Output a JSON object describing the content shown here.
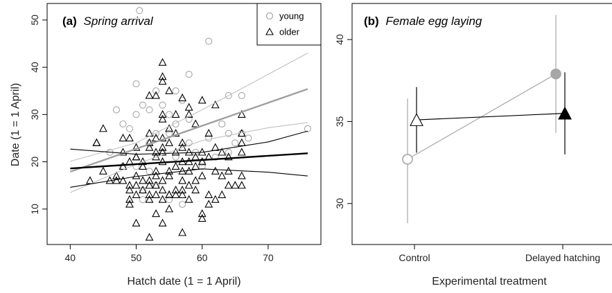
{
  "colors": {
    "young": "#a6a6a6",
    "older": "#000000"
  },
  "chart_data": [
    {
      "type": "scatter",
      "panel_label": "(a)",
      "title": "Spring arrival",
      "xlabel": "Hatch date (1 = 1 April)",
      "ylabel": "Date (1 = 1 April)",
      "xlim": [
        36.5,
        78
      ],
      "ylim": [
        2.5,
        53.5
      ],
      "xticks": [
        40,
        50,
        60,
        70
      ],
      "yticks": [
        10,
        20,
        30,
        40,
        50
      ],
      "legend": {
        "placement": "top-right",
        "entries": [
          "young",
          "older"
        ]
      },
      "series": [
        {
          "name": "young",
          "marker": "circle",
          "points": [
            [
              50.5,
              52
            ],
            [
              61,
              45.5
            ],
            [
              58,
              38.5
            ],
            [
              50,
              36.5
            ],
            [
              53,
              35
            ],
            [
              56,
              35
            ],
            [
              57,
              33
            ],
            [
              48,
              28
            ],
            [
              51,
              32
            ],
            [
              52,
              31
            ],
            [
              47,
              31
            ],
            [
              55,
              30
            ],
            [
              58,
              29
            ],
            [
              64,
              34
            ],
            [
              66,
              34
            ],
            [
              63,
              28
            ],
            [
              61,
              25
            ],
            [
              64,
              26
            ],
            [
              66,
              26
            ],
            [
              65,
              24
            ],
            [
              67,
              25
            ],
            [
              76,
              27
            ],
            [
              60,
              20
            ],
            [
              55,
              26
            ],
            [
              53,
              26
            ],
            [
              52,
              24
            ],
            [
              50,
              30
            ],
            [
              49,
              27
            ],
            [
              48,
              19
            ],
            [
              50,
              19
            ],
            [
              54,
              22
            ],
            [
              56,
              21
            ],
            [
              52,
              18
            ],
            [
              55,
              12
            ],
            [
              51,
              12
            ],
            [
              53,
              15
            ],
            [
              58,
              24
            ],
            [
              59,
              22
            ],
            [
              60,
              19
            ],
            [
              62,
              21
            ],
            [
              64,
              22
            ],
            [
              57,
              11
            ],
            [
              46,
              22
            ],
            [
              51,
              14
            ],
            [
              56,
              28
            ],
            [
              54,
              32
            ]
          ]
        },
        {
          "name": "older",
          "marker": "triangle",
          "points": [
            [
              54,
              41
            ],
            [
              54,
              38
            ],
            [
              54,
              37
            ],
            [
              57,
              33.5
            ],
            [
              58,
              31.5
            ],
            [
              60,
              33
            ],
            [
              53,
              34
            ],
            [
              52,
              34
            ],
            [
              55,
              35
            ],
            [
              54,
              30
            ],
            [
              54,
              29
            ],
            [
              56,
              30
            ],
            [
              58,
              30
            ],
            [
              59,
              28
            ],
            [
              55,
              27
            ],
            [
              52,
              26
            ],
            [
              56,
              26
            ],
            [
              53,
              25
            ],
            [
              54,
              25
            ],
            [
              45,
              27
            ],
            [
              44,
              24
            ],
            [
              48,
              25
            ],
            [
              49,
              25
            ],
            [
              50,
              23
            ],
            [
              52,
              23
            ],
            [
              53,
              22
            ],
            [
              54,
              23
            ],
            [
              55,
              24
            ],
            [
              57,
              23
            ],
            [
              58,
              22
            ],
            [
              59,
              21
            ],
            [
              60,
              22
            ],
            [
              61,
              21
            ],
            [
              62,
              23
            ],
            [
              63,
              22
            ],
            [
              64,
              21
            ],
            [
              66,
              22
            ],
            [
              66,
              26
            ],
            [
              66,
              30
            ],
            [
              66,
              24
            ],
            [
              62,
              32
            ],
            [
              61,
              26
            ],
            [
              50,
              21
            ],
            [
              51,
              20
            ],
            [
              53,
              21
            ],
            [
              54,
              20
            ],
            [
              56,
              19
            ],
            [
              57,
              20
            ],
            [
              58,
              18
            ],
            [
              59,
              19
            ],
            [
              60,
              20
            ],
            [
              62,
              18
            ],
            [
              63,
              17
            ],
            [
              66,
              17
            ],
            [
              66,
              15
            ],
            [
              45,
              18
            ],
            [
              47,
              17
            ],
            [
              48,
              16
            ],
            [
              49,
              15
            ],
            [
              50,
              17
            ],
            [
              51,
              16
            ],
            [
              52,
              16
            ],
            [
              53,
              17
            ],
            [
              54,
              16
            ],
            [
              55,
              18
            ],
            [
              57,
              16
            ],
            [
              58,
              15
            ],
            [
              59,
              14
            ],
            [
              61,
              13
            ],
            [
              62,
              12
            ],
            [
              63,
              13
            ],
            [
              64,
              18
            ],
            [
              49,
              14
            ],
            [
              50,
              13
            ],
            [
              51,
              14
            ],
            [
              52,
              13
            ],
            [
              53,
              13
            ],
            [
              54,
              14
            ],
            [
              55,
              13
            ],
            [
              56,
              14
            ],
            [
              57,
              14
            ],
            [
              58,
              12
            ],
            [
              60,
              9
            ],
            [
              60,
              8
            ],
            [
              49,
              12
            ],
            [
              49,
              11
            ],
            [
              52,
              15
            ],
            [
              53,
              15
            ],
            [
              55,
              13
            ],
            [
              57,
              13
            ],
            [
              43,
              16
            ],
            [
              46,
              16
            ],
            [
              47,
              16
            ],
            [
              48,
              19
            ],
            [
              50,
              21
            ],
            [
              52,
              4
            ],
            [
              50,
              7
            ],
            [
              54,
              7
            ],
            [
              57,
              5
            ],
            [
              53,
              9
            ],
            [
              55,
              10
            ],
            [
              44,
              24
            ],
            [
              49,
              20
            ],
            [
              51,
              19
            ],
            [
              56,
              22
            ],
            [
              58,
              20
            ],
            [
              60,
              17
            ],
            [
              61,
              11
            ],
            [
              64,
              15
            ],
            [
              65,
              15
            ],
            [
              48,
              22
            ],
            [
              52,
              24
            ],
            [
              54,
              22
            ],
            [
              57,
              24
            ],
            [
              50,
              15
            ],
            [
              53,
              18
            ],
            [
              55,
              17
            ],
            [
              57,
              18
            ],
            [
              59,
              16
            ],
            [
              52,
              12
            ],
            [
              54,
              12
            ],
            [
              56,
              13
            ]
          ]
        }
      ],
      "fit_lines": [
        {
          "name": "young",
          "role": "fit",
          "x": [
            40,
            76
          ],
          "y": [
            17.9,
            35.4
          ]
        },
        {
          "name": "young",
          "role": "ci-upper",
          "x": [
            40,
            50,
            60,
            70,
            76
          ],
          "y": [
            20.1,
            24.0,
            31.0,
            38.5,
            43.0
          ]
        },
        {
          "name": "young",
          "role": "ci-lower",
          "x": [
            40,
            50,
            60,
            70,
            76
          ],
          "y": [
            13.5,
            19.5,
            24.5,
            27.2,
            28.3
          ]
        },
        {
          "name": "older",
          "role": "fit",
          "x": [
            40,
            76
          ],
          "y": [
            18.6,
            21.8
          ]
        },
        {
          "name": "older",
          "role": "ci-upper",
          "x": [
            40,
            50,
            60,
            70,
            76
          ],
          "y": [
            22.7,
            21.6,
            22.0,
            24.2,
            26.5
          ]
        },
        {
          "name": "older",
          "role": "ci-lower",
          "x": [
            40,
            50,
            60,
            70,
            76
          ],
          "y": [
            14.6,
            16.9,
            18.5,
            17.8,
            17.0
          ]
        }
      ]
    },
    {
      "type": "line",
      "panel_label": "(b)",
      "title": "Female egg laying",
      "xlabel": "Experimental treatment",
      "ylabel": "",
      "categories": [
        "Control",
        "Delayed hatching"
      ],
      "ylim": [
        27.5,
        42.2
      ],
      "yticks": [
        30,
        35,
        40
      ],
      "series": [
        {
          "name": "young",
          "marker": "circle",
          "values": [
            32.7,
            37.9
          ],
          "lower": [
            28.8,
            34.3
          ],
          "upper": [
            36.4,
            41.5
          ]
        },
        {
          "name": "older",
          "marker": "triangle",
          "values": [
            35.1,
            35.5
          ],
          "lower": [
            33.1,
            33.0
          ],
          "upper": [
            37.1,
            38.0
          ]
        }
      ]
    }
  ]
}
